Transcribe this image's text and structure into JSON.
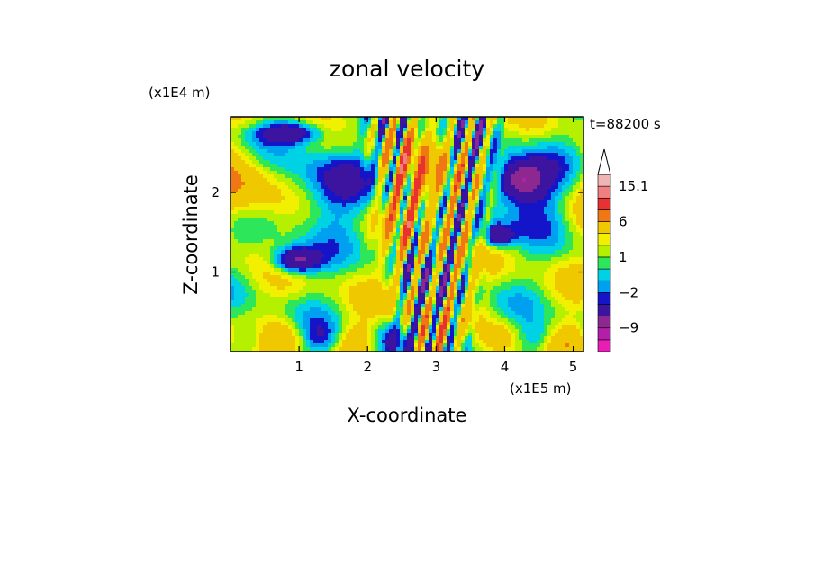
{
  "chart_data": {
    "type": "heatmap",
    "title": "zonal velocity",
    "xlabel": "X-coordinate",
    "ylabel": "Z-coordinate",
    "x_unit": "(x1E5 m)",
    "y_unit": "(x1E4 m)",
    "time_label": "t=88200 s",
    "xlim": [
      0,
      5.15
    ],
    "ylim": [
      0,
      2.95
    ],
    "x_ticks": [
      1,
      2,
      3,
      4,
      5
    ],
    "y_ticks": [
      1,
      2
    ],
    "colorbar": {
      "levels": [
        -15,
        -12,
        -9,
        -6,
        -3,
        -2,
        -1,
        0,
        1,
        2,
        3,
        6,
        9,
        12,
        15.1
      ],
      "colors": [
        "#e81eb4",
        "#b41ea8",
        "#8c2890",
        "#3c14a0",
        "#1414c8",
        "#00a0f0",
        "#00d2e6",
        "#2ee65a",
        "#b4f000",
        "#f0f000",
        "#f0c800",
        "#f07814",
        "#e83232",
        "#f08080",
        "#f0b4b4"
      ],
      "tick_labels": [
        {
          "label": "15.1",
          "value": 15.1
        },
        {
          "label": "6",
          "value": 6
        },
        {
          "label": "1",
          "value": 1
        },
        {
          "label": "−2",
          "value": -2
        },
        {
          "label": "−9",
          "value": -9
        }
      ],
      "extend_max": true
    }
  }
}
